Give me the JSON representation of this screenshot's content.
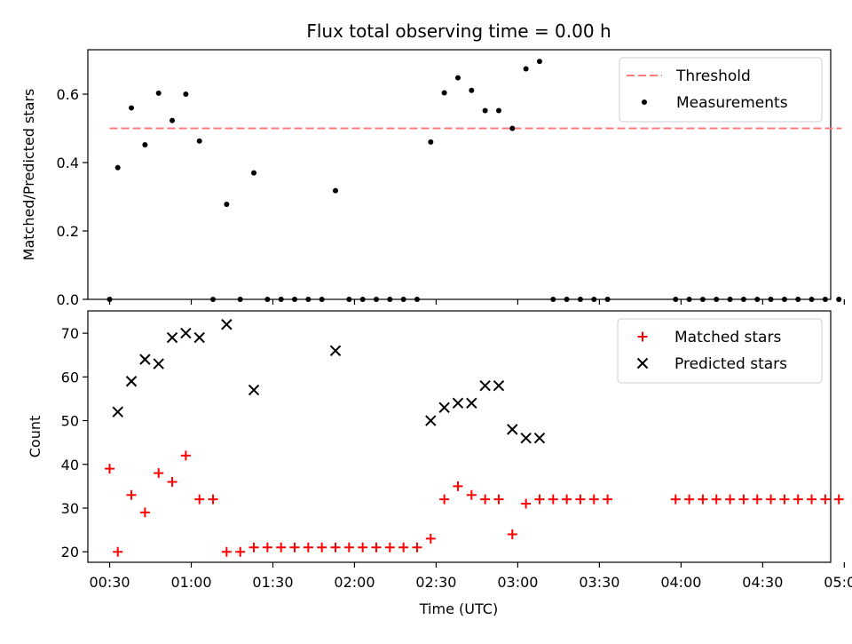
{
  "title": "Flux total observing time = 0.00 h",
  "xlabel": "Time (UTC)",
  "xtick_labels": [
    "00:30",
    "01:00",
    "01:30",
    "02:00",
    "02:30",
    "03:00",
    "03:30",
    "04:00",
    "04:30",
    "05:00"
  ],
  "chart_data": [
    {
      "type": "scatter",
      "ylabel": "Matched/Predicted stars",
      "ylim": [
        0,
        0.73
      ],
      "yticks": [
        "0.0",
        "0.2",
        "0.4",
        "0.6"
      ],
      "xlim_minutes": [
        22,
        295
      ],
      "legend_position": "top-right",
      "threshold": {
        "name": "Threshold",
        "value": 0.5,
        "x_start": "00:30",
        "x_end": "04:59",
        "color": "#ff7b7b",
        "style": "dashed"
      },
      "series": [
        {
          "name": "Measurements",
          "color": "#000000",
          "marker": "dot",
          "points": [
            [
              "00:30",
              0.0
            ],
            [
              "00:33",
              0.385
            ],
            [
              "00:38",
              0.56
            ],
            [
              "00:43",
              0.452
            ],
            [
              "00:48",
              0.603
            ],
            [
              "00:53",
              0.523
            ],
            [
              "00:58",
              0.6
            ],
            [
              "01:03",
              0.463
            ],
            [
              "01:08",
              0.0
            ],
            [
              "01:13",
              0.278
            ],
            [
              "01:18",
              0.0
            ],
            [
              "01:23",
              0.37
            ],
            [
              "01:28",
              0.0
            ],
            [
              "01:33",
              0.0
            ],
            [
              "01:38",
              0.0
            ],
            [
              "01:43",
              0.0
            ],
            [
              "01:48",
              0.0
            ],
            [
              "01:53",
              0.318
            ],
            [
              "01:58",
              0.0
            ],
            [
              "02:03",
              0.0
            ],
            [
              "02:08",
              0.0
            ],
            [
              "02:13",
              0.0
            ],
            [
              "02:18",
              0.0
            ],
            [
              "02:23",
              0.0
            ],
            [
              "02:28",
              0.46
            ],
            [
              "02:33",
              0.604
            ],
            [
              "02:38",
              0.648
            ],
            [
              "02:43",
              0.611
            ],
            [
              "02:48",
              0.552
            ],
            [
              "02:53",
              0.552
            ],
            [
              "02:58",
              0.5
            ],
            [
              "03:03",
              0.674
            ],
            [
              "03:08",
              0.696
            ],
            [
              "03:13",
              0.0
            ],
            [
              "03:18",
              0.0
            ],
            [
              "03:23",
              0.0
            ],
            [
              "03:28",
              0.0
            ],
            [
              "03:33",
              0.0
            ],
            [
              "03:58",
              0.0
            ],
            [
              "04:03",
              0.0
            ],
            [
              "04:08",
              0.0
            ],
            [
              "04:13",
              0.0
            ],
            [
              "04:18",
              0.0
            ],
            [
              "04:23",
              0.0
            ],
            [
              "04:28",
              0.0
            ],
            [
              "04:33",
              0.0
            ],
            [
              "04:38",
              0.0
            ],
            [
              "04:43",
              0.0
            ],
            [
              "04:48",
              0.0
            ],
            [
              "04:53",
              0.0
            ],
            [
              "04:58",
              0.0
            ]
          ]
        }
      ]
    },
    {
      "type": "scatter",
      "ylabel": "Count",
      "ylim": [
        17.6,
        75.1
      ],
      "yticks": [
        "20",
        "30",
        "40",
        "50",
        "60",
        "70"
      ],
      "xlim_minutes": [
        22,
        295
      ],
      "legend_position": "top-right",
      "series": [
        {
          "name": "Matched stars",
          "color": "#ff0000",
          "marker": "plus",
          "points": [
            [
              "00:30",
              39
            ],
            [
              "00:33",
              20
            ],
            [
              "00:38",
              33
            ],
            [
              "00:43",
              29
            ],
            [
              "00:48",
              38
            ],
            [
              "00:53",
              36
            ],
            [
              "00:58",
              42
            ],
            [
              "01:03",
              32
            ],
            [
              "01:08",
              32
            ],
            [
              "01:13",
              20
            ],
            [
              "01:18",
              20
            ],
            [
              "01:23",
              21
            ],
            [
              "01:28",
              21
            ],
            [
              "01:33",
              21
            ],
            [
              "01:38",
              21
            ],
            [
              "01:43",
              21
            ],
            [
              "01:48",
              21
            ],
            [
              "01:53",
              21
            ],
            [
              "01:58",
              21
            ],
            [
              "02:03",
              21
            ],
            [
              "02:08",
              21
            ],
            [
              "02:13",
              21
            ],
            [
              "02:18",
              21
            ],
            [
              "02:23",
              21
            ],
            [
              "02:28",
              23
            ],
            [
              "02:33",
              32
            ],
            [
              "02:38",
              35
            ],
            [
              "02:43",
              33
            ],
            [
              "02:48",
              32
            ],
            [
              "02:53",
              32
            ],
            [
              "02:58",
              24
            ],
            [
              "03:03",
              31
            ],
            [
              "03:08",
              32
            ],
            [
              "03:13",
              32
            ],
            [
              "03:18",
              32
            ],
            [
              "03:23",
              32
            ],
            [
              "03:28",
              32
            ],
            [
              "03:33",
              32
            ],
            [
              "03:58",
              32
            ],
            [
              "04:03",
              32
            ],
            [
              "04:08",
              32
            ],
            [
              "04:13",
              32
            ],
            [
              "04:18",
              32
            ],
            [
              "04:23",
              32
            ],
            [
              "04:28",
              32
            ],
            [
              "04:33",
              32
            ],
            [
              "04:38",
              32
            ],
            [
              "04:43",
              32
            ],
            [
              "04:48",
              32
            ],
            [
              "04:53",
              32
            ],
            [
              "04:58",
              32
            ]
          ]
        },
        {
          "name": "Predicted stars",
          "color": "#000000",
          "marker": "x",
          "points": [
            [
              "00:33",
              52
            ],
            [
              "00:38",
              59
            ],
            [
              "00:43",
              64
            ],
            [
              "00:48",
              63
            ],
            [
              "00:53",
              69
            ],
            [
              "00:58",
              70
            ],
            [
              "01:03",
              69
            ],
            [
              "01:13",
              72
            ],
            [
              "01:23",
              57
            ],
            [
              "01:53",
              66
            ],
            [
              "02:28",
              50
            ],
            [
              "02:33",
              53
            ],
            [
              "02:38",
              54
            ],
            [
              "02:43",
              54
            ],
            [
              "02:48",
              58
            ],
            [
              "02:53",
              58
            ],
            [
              "02:58",
              48
            ],
            [
              "03:03",
              46
            ],
            [
              "03:08",
              46
            ]
          ]
        }
      ]
    }
  ]
}
